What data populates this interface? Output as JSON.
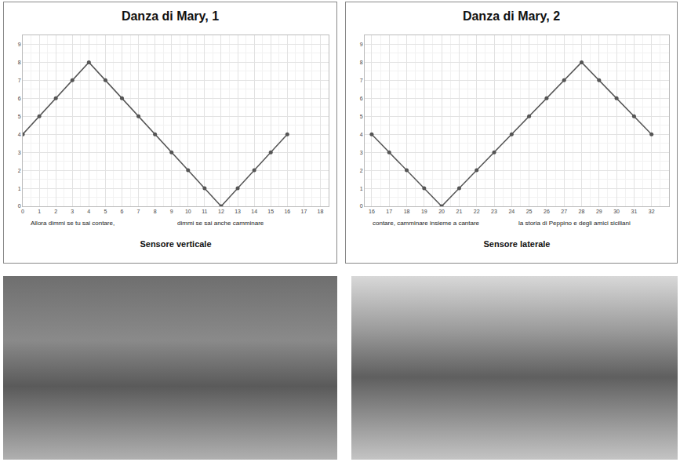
{
  "chart_data": [
    {
      "type": "line",
      "title": "Danza di Mary, 1",
      "x_label": "Sensore verticale",
      "annotations": [
        "Allora dimmi se tu sai contare,",
        "dimmi se sai anche camminare"
      ],
      "x": [
        0,
        1,
        2,
        3,
        4,
        5,
        6,
        7,
        8,
        9,
        10,
        11,
        12,
        13,
        14,
        15,
        16
      ],
      "values": [
        4,
        5,
        6,
        7,
        8,
        7,
        6,
        5,
        4,
        3,
        2,
        1,
        0,
        1,
        2,
        3,
        4
      ],
      "color": "#555555",
      "marker": "circle",
      "grid": true,
      "xlim": [
        0,
        18.5
      ],
      "xticks": [
        0,
        1,
        2,
        3,
        4,
        5,
        6,
        7,
        8,
        9,
        10,
        11,
        12,
        13,
        14,
        15,
        16,
        17,
        18
      ],
      "ylim": [
        0,
        9.5
      ],
      "yticks": [
        0,
        1,
        2,
        3,
        4,
        5,
        6,
        7,
        8,
        9
      ]
    },
    {
      "type": "line",
      "title": "Danza di Mary, 2",
      "x_label": "Sensore laterale",
      "annotations": [
        "contare, camminare insieme a cantare",
        "la storia di Peppino e degli amici siciliani"
      ],
      "x": [
        16,
        17,
        18,
        19,
        20,
        21,
        22,
        23,
        24,
        25,
        26,
        27,
        28,
        29,
        30,
        31,
        32
      ],
      "values": [
        4,
        3,
        2,
        1,
        0,
        1,
        2,
        3,
        4,
        5,
        6,
        7,
        8,
        7,
        6,
        5,
        4
      ],
      "color": "#555555",
      "marker": "circle",
      "grid": true,
      "xlim": [
        15.6,
        33
      ],
      "xticks": [
        16,
        17,
        18,
        19,
        20,
        21,
        22,
        23,
        24,
        25,
        26,
        27,
        28,
        29,
        30,
        31,
        32
      ],
      "ylim": [
        0,
        9.5
      ],
      "yticks": [
        0,
        1,
        2,
        3,
        4,
        5,
        6,
        7,
        8,
        9
      ]
    }
  ]
}
